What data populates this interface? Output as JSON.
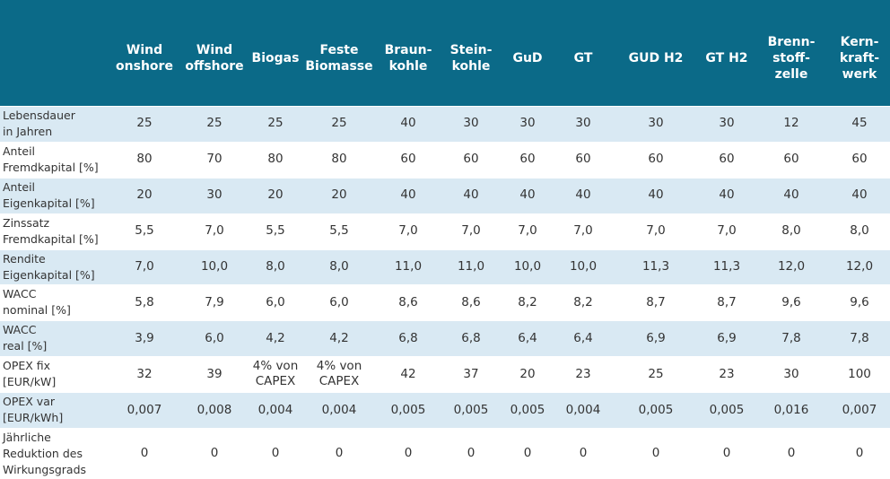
{
  "table": {
    "header": [
      "Wind\nonshore",
      "Wind\noffshore",
      "Biogas",
      "Feste\nBiomasse",
      "Braun-\nkohle",
      "Stein-\nkohle",
      "GuD",
      "GT",
      "GUD H2",
      "GT H2",
      "Brenn-\nstoff-\nzelle",
      "Kern-\nkraft-\nwerk"
    ],
    "rows": [
      {
        "label": "Lebensdauer\nin Jahren",
        "cells": [
          "25",
          "25",
          "25",
          "25",
          "40",
          "30",
          "30",
          "30",
          "30",
          "30",
          "12",
          "45"
        ]
      },
      {
        "label": "Anteil\nFremdkapital [%]",
        "cells": [
          "80",
          "70",
          "80",
          "80",
          "60",
          "60",
          "60",
          "60",
          "60",
          "60",
          "60",
          "60"
        ]
      },
      {
        "label": "Anteil\nEigenkapital [%]",
        "cells": [
          "20",
          "30",
          "20",
          "20",
          "40",
          "40",
          "40",
          "40",
          "40",
          "40",
          "40",
          "40"
        ]
      },
      {
        "label": "Zinssatz\nFremdkapital [%]",
        "cells": [
          "5,5",
          "7,0",
          "5,5",
          "5,5",
          "7,0",
          "7,0",
          "7,0",
          "7,0",
          "7,0",
          "7,0",
          "8,0",
          "8,0"
        ]
      },
      {
        "label": "Rendite\nEigenkapital [%]",
        "cells": [
          "7,0",
          "10,0",
          "8,0",
          "8,0",
          "11,0",
          "11,0",
          "10,0",
          "10,0",
          "11,3",
          "11,3",
          "12,0",
          "12,0"
        ]
      },
      {
        "label": "WACC\nnominal [%]",
        "cells": [
          "5,8",
          "7,9",
          "6,0",
          "6,0",
          "8,6",
          "8,6",
          "8,2",
          "8,2",
          "8,7",
          "8,7",
          "9,6",
          "9,6"
        ]
      },
      {
        "label": "WACC\nreal [%]",
        "cells": [
          "3,9",
          "6,0",
          "4,2",
          "4,2",
          "6,8",
          "6,8",
          "6,4",
          "6,4",
          "6,9",
          "6,9",
          "7,8",
          "7,8"
        ]
      },
      {
        "label": "OPEX fix\n[EUR/kW]",
        "cells": [
          "32",
          "39",
          "4% von\nCAPEX",
          "4% von\nCAPEX",
          "42",
          "37",
          "20",
          "23",
          "25",
          "23",
          "30",
          "100"
        ]
      },
      {
        "label": "OPEX var\n[EUR/kWh]",
        "cells": [
          "0,007",
          "0,008",
          "0,004",
          "0,004",
          "0,005",
          "0,005",
          "0,005",
          "0,004",
          "0,005",
          "0,005",
          "0,016",
          "0,007"
        ]
      },
      {
        "label": "Jährliche\nReduktion des\nWirkungsgrads",
        "cells": [
          "0",
          "0",
          "0",
          "0",
          "0",
          "0",
          "0",
          "0",
          "0",
          "0",
          "0",
          "0"
        ]
      }
    ]
  }
}
